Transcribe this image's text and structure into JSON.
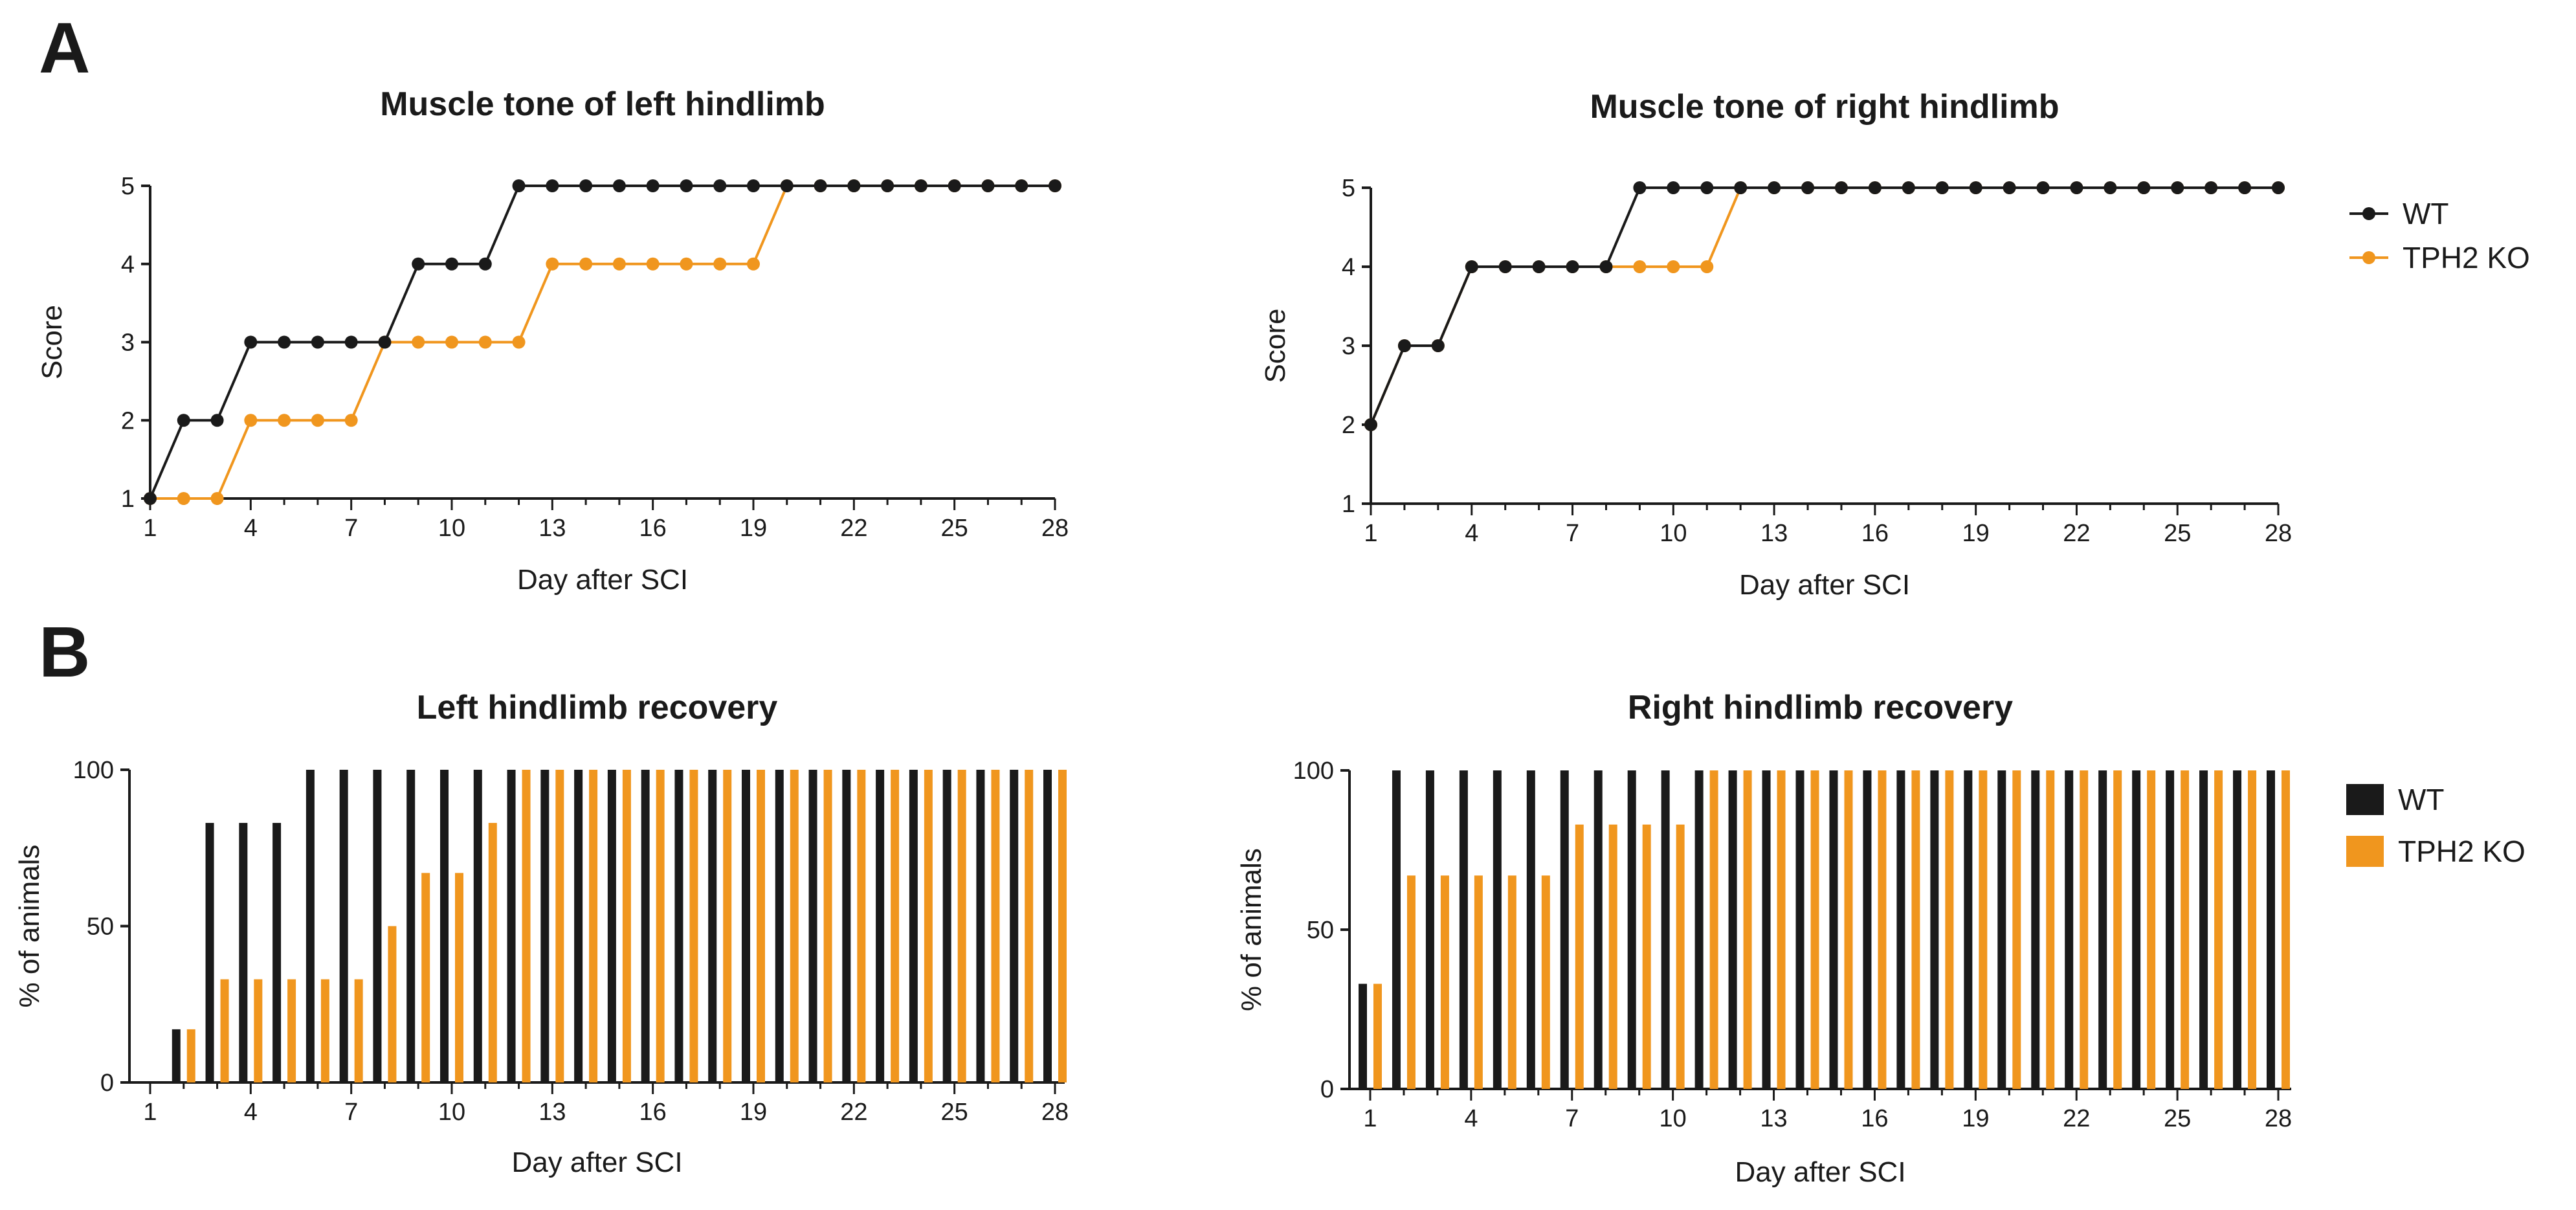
{
  "panels": {
    "A": "A",
    "B": "B"
  },
  "colors": {
    "wt": "#1a1a1a",
    "ko": "#f0961e",
    "axis": "#1a1a1a"
  },
  "chart_data": [
    {
      "id": "left-tone",
      "type": "line",
      "title": "Muscle tone of left hindlimb",
      "xlabel": "Day after SCI",
      "ylabel": "Score",
      "xlim": [
        1,
        28
      ],
      "ylim": [
        1,
        5
      ],
      "xticks": [
        1,
        4,
        7,
        10,
        13,
        16,
        19,
        22,
        25,
        28
      ],
      "yticks": [
        1,
        2,
        3,
        4,
        5
      ],
      "x": [
        1,
        2,
        3,
        4,
        5,
        6,
        7,
        8,
        9,
        10,
        11,
        12,
        13,
        14,
        15,
        16,
        17,
        18,
        19,
        20,
        21,
        22,
        23,
        24,
        25,
        26,
        27,
        28
      ],
      "series": [
        {
          "name": "WT",
          "values": [
            1,
            2,
            2,
            3,
            3,
            3,
            3,
            3,
            4,
            4,
            4,
            5,
            5,
            5,
            5,
            5,
            5,
            5,
            5,
            5,
            5,
            5,
            5,
            5,
            5,
            5,
            5,
            5
          ]
        },
        {
          "name": "TPH2 KO",
          "values": [
            1,
            1,
            1,
            2,
            2,
            2,
            2,
            3,
            3,
            3,
            3,
            3,
            4,
            4,
            4,
            4,
            4,
            4,
            4,
            5,
            5,
            5,
            5,
            5,
            5,
            5,
            5,
            5
          ]
        }
      ]
    },
    {
      "id": "right-tone",
      "type": "line",
      "title": "Muscle tone of right hindlimb",
      "xlabel": "Day after SCI",
      "ylabel": "Score",
      "xlim": [
        1,
        28
      ],
      "ylim": [
        1,
        5
      ],
      "xticks": [
        1,
        4,
        7,
        10,
        13,
        16,
        19,
        22,
        25,
        28
      ],
      "yticks": [
        1,
        2,
        3,
        4,
        5
      ],
      "x": [
        1,
        2,
        3,
        4,
        5,
        6,
        7,
        8,
        9,
        10,
        11,
        12,
        13,
        14,
        15,
        16,
        17,
        18,
        19,
        20,
        21,
        22,
        23,
        24,
        25,
        26,
        27,
        28
      ],
      "legend": [
        "WT",
        "TPH2 KO"
      ],
      "series": [
        {
          "name": "WT",
          "values": [
            2,
            3,
            3,
            4,
            4,
            4,
            4,
            4,
            5,
            5,
            5,
            5,
            5,
            5,
            5,
            5,
            5,
            5,
            5,
            5,
            5,
            5,
            5,
            5,
            5,
            5,
            5,
            5
          ]
        },
        {
          "name": "TPH2 KO",
          "values": [
            2,
            3,
            3,
            4,
            4,
            4,
            4,
            4,
            4,
            4,
            4,
            5,
            5,
            5,
            5,
            5,
            5,
            5,
            5,
            5,
            5,
            5,
            5,
            5,
            5,
            5,
            5,
            5
          ]
        }
      ]
    },
    {
      "id": "left-recovery",
      "type": "bar",
      "title": "Left hindlimb recovery",
      "xlabel": "Day after SCI",
      "ylabel": "% of animals",
      "xlim": [
        1,
        28
      ],
      "ylim": [
        0,
        100
      ],
      "xticks": [
        1,
        4,
        7,
        10,
        13,
        16,
        19,
        22,
        25,
        28
      ],
      "yticks": [
        0,
        50,
        100
      ],
      "categories": [
        1,
        2,
        3,
        4,
        5,
        6,
        7,
        8,
        9,
        10,
        11,
        12,
        13,
        14,
        15,
        16,
        17,
        18,
        19,
        20,
        21,
        22,
        23,
        24,
        25,
        26,
        27,
        28
      ],
      "series": [
        {
          "name": "WT",
          "values": [
            0,
            17,
            83,
            83,
            83,
            100,
            100,
            100,
            100,
            100,
            100,
            100,
            100,
            100,
            100,
            100,
            100,
            100,
            100,
            100,
            100,
            100,
            100,
            100,
            100,
            100,
            100,
            100
          ]
        },
        {
          "name": "TPH2 KO",
          "values": [
            0,
            17,
            33,
            33,
            33,
            33,
            33,
            50,
            67,
            67,
            83,
            100,
            100,
            100,
            100,
            100,
            100,
            100,
            100,
            100,
            100,
            100,
            100,
            100,
            100,
            100,
            100,
            100
          ]
        }
      ]
    },
    {
      "id": "right-recovery",
      "type": "bar",
      "title": "Right hindlimb recovery",
      "xlabel": "Day after SCI",
      "ylabel": "% of animals",
      "xlim": [
        1,
        28
      ],
      "ylim": [
        0,
        100
      ],
      "xticks": [
        1,
        4,
        7,
        10,
        13,
        16,
        19,
        22,
        25,
        28
      ],
      "yticks": [
        0,
        50,
        100
      ],
      "categories": [
        1,
        2,
        3,
        4,
        5,
        6,
        7,
        8,
        9,
        10,
        11,
        12,
        13,
        14,
        15,
        16,
        17,
        18,
        19,
        20,
        21,
        22,
        23,
        24,
        25,
        26,
        27,
        28
      ],
      "legend": [
        "WT",
        "TPH2 KO"
      ],
      "series": [
        {
          "name": "WT",
          "values": [
            33,
            100,
            100,
            100,
            100,
            100,
            100,
            100,
            100,
            100,
            100,
            100,
            100,
            100,
            100,
            100,
            100,
            100,
            100,
            100,
            100,
            100,
            100,
            100,
            100,
            100,
            100,
            100
          ]
        },
        {
          "name": "TPH2 KO",
          "values": [
            33,
            67,
            67,
            67,
            67,
            67,
            83,
            83,
            83,
            83,
            100,
            100,
            100,
            100,
            100,
            100,
            100,
            100,
            100,
            100,
            100,
            100,
            100,
            100,
            100,
            100,
            100,
            100
          ]
        }
      ]
    }
  ]
}
